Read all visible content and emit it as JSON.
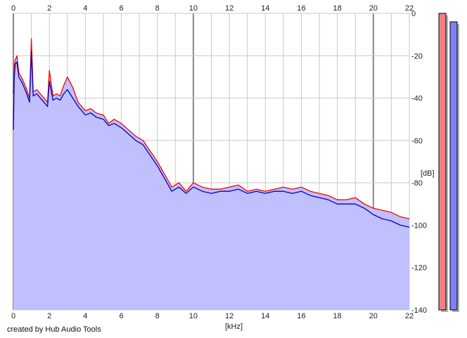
{
  "app": {
    "credit": "created by Hub Audio Tools"
  },
  "colors": {
    "background": "#ffffff",
    "fill": "#c0c0ff",
    "grid": "#c8c8c8",
    "grid_major": "#888888",
    "left_channel": "#ff0000",
    "right_channel": "#0000c0",
    "meter_left": "#f08080",
    "meter_right": "#8080f0"
  },
  "chart_data": {
    "type": "line",
    "title": "",
    "xlabel": "[kHz]",
    "ylabel": "[dB]",
    "xlim": [
      0,
      22
    ],
    "ylim": [
      -140,
      0
    ],
    "x_ticks": [
      "0",
      "2",
      "4",
      "6",
      "8",
      "10",
      "12",
      "14",
      "16",
      "18",
      "20",
      "22"
    ],
    "y_ticks": [
      "0",
      "-20",
      "-40",
      "-60",
      "-80",
      "-100",
      "-120",
      "-140"
    ],
    "major_x_grid": [
      10,
      20
    ],
    "grid": true,
    "series": [
      {
        "channel": "left",
        "color": "#ff0000",
        "x": [
          0,
          0.05,
          0.1,
          0.2,
          0.3,
          0.5,
          0.7,
          0.9,
          1.0,
          1.1,
          1.3,
          1.5,
          1.7,
          1.9,
          2.0,
          2.2,
          2.4,
          2.6,
          2.8,
          3.0,
          3.3,
          3.6,
          4.0,
          4.3,
          4.6,
          5.0,
          5.3,
          5.6,
          6.0,
          6.4,
          6.8,
          7.2,
          7.6,
          8.0,
          8.4,
          8.8,
          9.2,
          9.6,
          10.0,
          10.5,
          11.0,
          11.5,
          12.0,
          12.5,
          13.0,
          13.5,
          14.0,
          14.5,
          15.0,
          15.5,
          16.0,
          16.5,
          17.0,
          17.5,
          18.0,
          18.5,
          19.0,
          19.5,
          20.0,
          20.5,
          21.0,
          21.5,
          22.0
        ],
        "values": [
          -38,
          -25,
          -22,
          -20,
          -28,
          -31,
          -35,
          -40,
          -12,
          -37,
          -36,
          -38,
          -40,
          -42,
          -27,
          -39,
          -38,
          -39,
          -34,
          -30,
          -35,
          -42,
          -46,
          -45,
          -47,
          -48,
          -52,
          -50,
          -52,
          -55,
          -58,
          -60,
          -65,
          -70,
          -76,
          -82,
          -80,
          -84,
          -80,
          -82,
          -83,
          -83,
          -82,
          -81,
          -84,
          -83,
          -84,
          -83,
          -82,
          -83,
          -82,
          -84,
          -85,
          -86,
          -88,
          -88,
          -87,
          -90,
          -92,
          -93,
          -94,
          -96,
          -97
        ]
      },
      {
        "channel": "right",
        "color": "#0000c0",
        "x": [
          0,
          0.05,
          0.1,
          0.2,
          0.3,
          0.5,
          0.7,
          0.9,
          1.0,
          1.1,
          1.3,
          1.5,
          1.7,
          1.9,
          2.0,
          2.2,
          2.4,
          2.6,
          2.8,
          3.0,
          3.3,
          3.6,
          4.0,
          4.3,
          4.6,
          5.0,
          5.3,
          5.6,
          6.0,
          6.4,
          6.8,
          7.2,
          7.6,
          8.0,
          8.4,
          8.8,
          9.2,
          9.6,
          10.0,
          10.5,
          11.0,
          11.5,
          12.0,
          12.5,
          13.0,
          13.5,
          14.0,
          14.5,
          15.0,
          15.5,
          16.0,
          16.5,
          17.0,
          17.5,
          18.0,
          18.5,
          19.0,
          19.5,
          20.0,
          20.5,
          21.0,
          21.5,
          22.0
        ],
        "values": [
          -55,
          -30,
          -24,
          -23,
          -30,
          -33,
          -37,
          -42,
          -18,
          -39,
          -38,
          -40,
          -42,
          -44,
          -32,
          -41,
          -40,
          -41,
          -38,
          -36,
          -40,
          -44,
          -48,
          -47,
          -49,
          -50,
          -53,
          -52,
          -54,
          -57,
          -60,
          -62,
          -67,
          -72,
          -78,
          -84,
          -82,
          -85,
          -82,
          -84,
          -85,
          -84,
          -84,
          -83,
          -85,
          -84,
          -85,
          -84,
          -84,
          -85,
          -84,
          -86,
          -87,
          -88,
          -90,
          -90,
          -90,
          -92,
          -95,
          -97,
          -98,
          -100,
          -101
        ]
      }
    ],
    "level_meters": [
      {
        "channel": "left",
        "level_db": 0,
        "color": "#f08080"
      },
      {
        "channel": "right",
        "level_db": -4,
        "color": "#8080f0"
      }
    ]
  }
}
